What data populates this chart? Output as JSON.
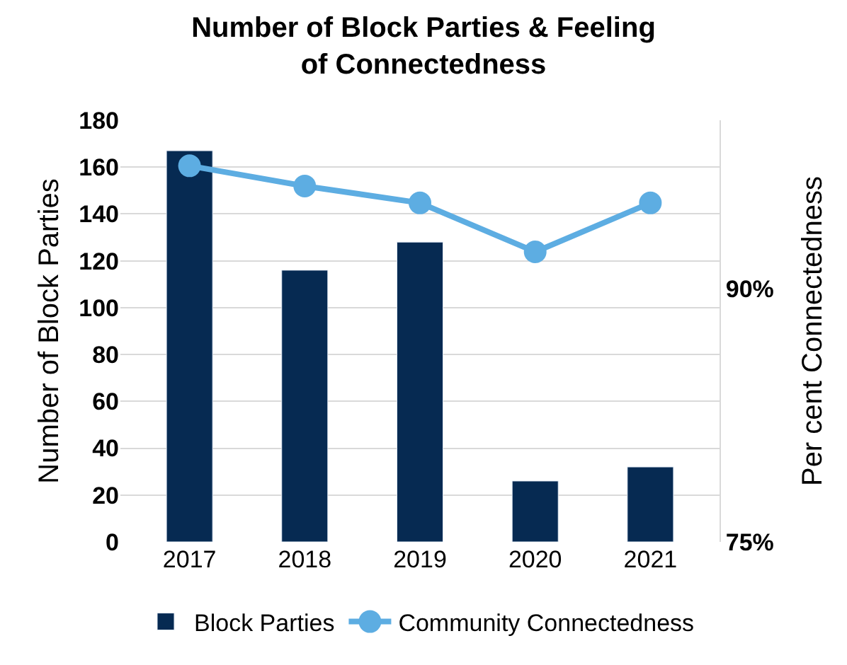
{
  "chart_data": {
    "type": "bar",
    "title": "Number of Block Parties & Feeling of Connectedness",
    "categories": [
      "2017",
      "2018",
      "2019",
      "2020",
      "2021"
    ],
    "series": [
      {
        "name": "Block Parties",
        "color": "#062a52",
        "values": [
          167,
          116,
          128,
          26,
          32
        ]
      },
      {
        "name": "Community Connectedness",
        "type": "line",
        "axis": "y2",
        "color": "#5dade2",
        "marker": "circle",
        "values": [
          97.3,
          96.1,
          95.1,
          92.2,
          95.1
        ]
      }
    ],
    "ylabel": "Number of Block Parties",
    "y2label": "Per cent Connectedness",
    "ylim": [
      0,
      180
    ],
    "yticks": [
      0,
      20,
      40,
      60,
      80,
      100,
      120,
      140,
      160,
      180
    ],
    "y2lim": [
      75,
      100
    ],
    "y2ticks": [
      {
        "value": 75,
        "label": "75%"
      },
      {
        "value": 90,
        "label": "90%"
      }
    ],
    "grid": "y",
    "legend": "bottom"
  }
}
